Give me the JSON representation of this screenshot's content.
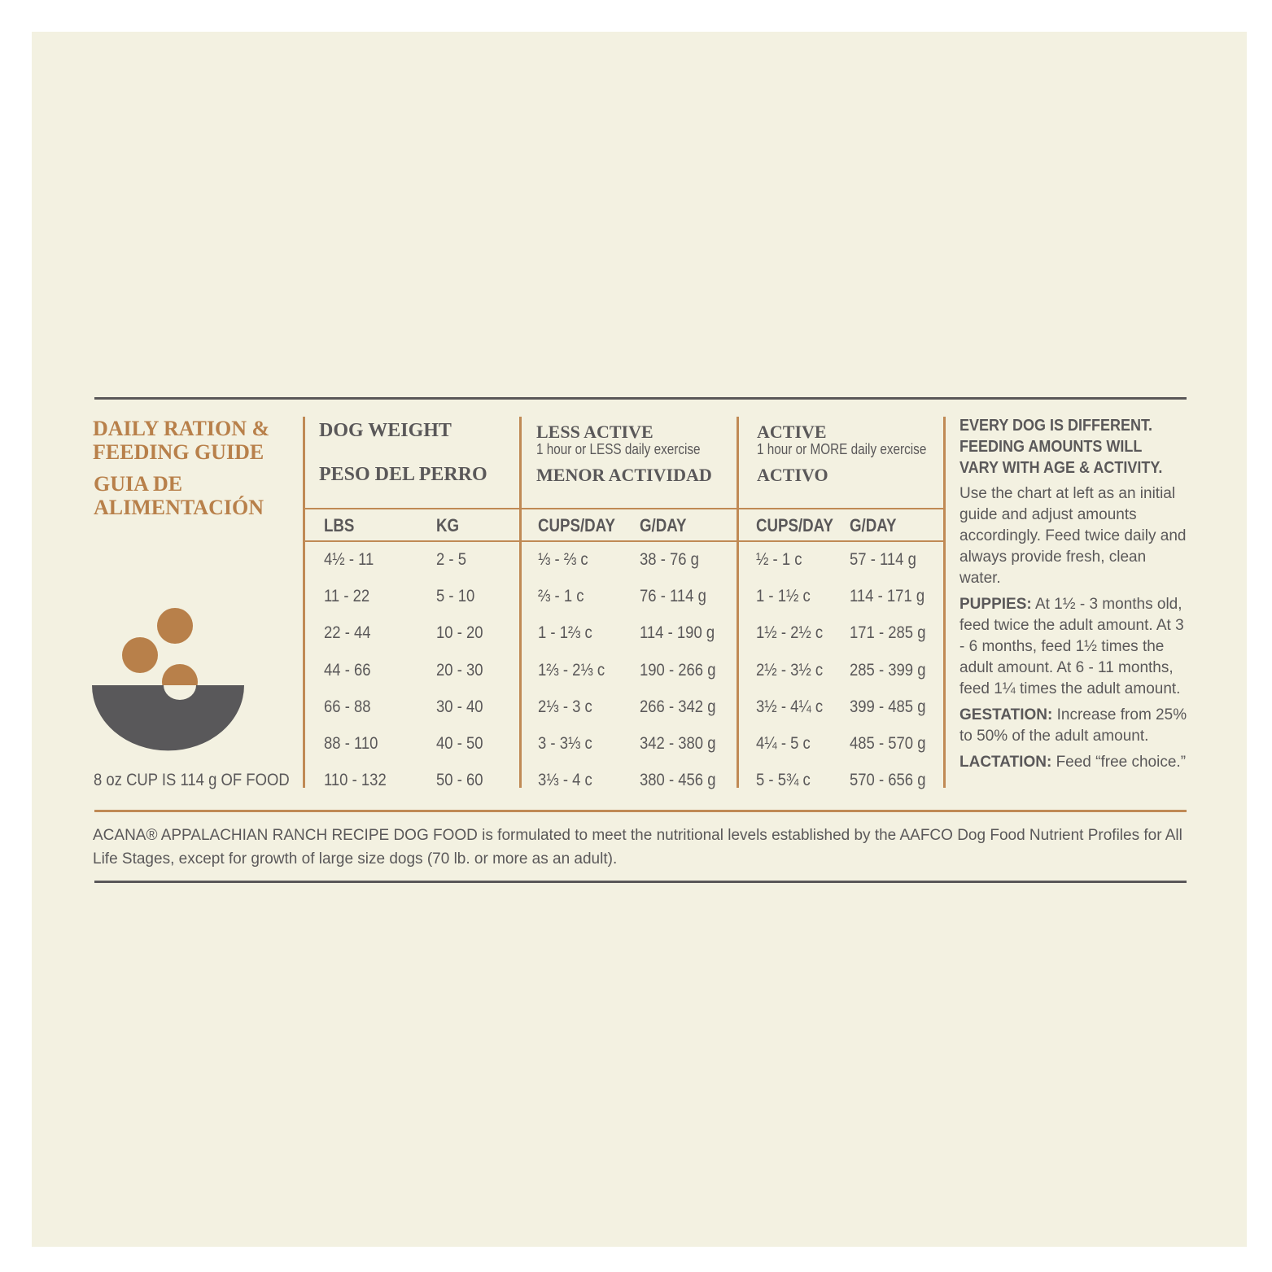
{
  "guide": {
    "title": [
      "DAILY RATION &",
      "FEEDING GUIDE"
    ],
    "title_es": [
      "GUIA DE",
      "ALIMENTACIÓN"
    ],
    "cup_note": "8 oz CUP IS 114 g OF FOOD"
  },
  "table": {
    "groups": [
      {
        "title": "DOG WEIGHT",
        "title_es": "PESO DEL PERRO"
      },
      {
        "title": "LESS ACTIVE",
        "subtitle": "1 hour or LESS daily exercise",
        "title_es": "MENOR ACTIVIDAD"
      },
      {
        "title": "ACTIVE",
        "subtitle": "1 hour or MORE daily exercise",
        "title_es": "ACTIVO"
      }
    ],
    "columns": [
      "LBS",
      "KG",
      "CUPS/DAY",
      "G/DAY",
      "CUPS/DAY",
      "G/DAY"
    ],
    "rows": [
      [
        "4½ - 11",
        "2 - 5",
        "⅓ - ⅔ c",
        "38 - 76 g",
        "½ - 1 c",
        "57 - 114 g"
      ],
      [
        "11 - 22",
        "5 - 10",
        "⅔ - 1 c",
        "76 - 114 g",
        "1 - 1½ c",
        "114 - 171 g"
      ],
      [
        "22 - 44",
        "10 - 20",
        "1 - 1⅔ c",
        "114 - 190 g",
        "1½ - 2½ c",
        "171 - 285 g"
      ],
      [
        "44 - 66",
        "20 - 30",
        "1⅔ - 2⅓ c",
        "190 - 266 g",
        "2½ - 3½ c",
        "285 - 399 g"
      ],
      [
        "66 - 88",
        "30 - 40",
        "2⅓ - 3 c",
        "266 - 342 g",
        "3½ - 4¼ c",
        "399 - 485 g"
      ],
      [
        "88 - 110",
        "40 - 50",
        "3 - 3⅓ c",
        "342 - 380 g",
        "4¼ - 5 c",
        "485 - 570 g"
      ],
      [
        "110 - 132",
        "50 - 60",
        "3⅓ - 4 c",
        "380 - 456 g",
        "5 - 5¾ c",
        "570 - 656 g"
      ]
    ]
  },
  "notes": {
    "heading": [
      "EVERY DOG IS DIFFERENT.",
      "FEEDING AMOUNTS WILL",
      "VARY WITH AGE & ACTIVITY."
    ],
    "intro": "Use the chart at left as an initial guide and adjust amounts accordingly. Feed twice daily and always provide fresh, clean water.",
    "items": [
      {
        "label": "PUPPIES:",
        "text": "At 1½ - 3 months old, feed twice the adult amount. At 3 - 6 months, feed 1½ times the adult amount. At 6 - 11 months, feed 1¼ times the adult amount."
      },
      {
        "label": "GESTATION:",
        "text": "Increase from 25% to 50% of the adult amount."
      },
      {
        "label": "LACTATION:",
        "text": "Feed “free choice.”"
      }
    ]
  },
  "footer": "ACANA® APPALACHIAN RANCH RECIPE DOG FOOD is formulated to meet the nutritional levels established by the AAFCO Dog Food Nutrient Profiles for All Life Stages, except for growth of large size dogs (70 lb. or more as an adult)."
}
